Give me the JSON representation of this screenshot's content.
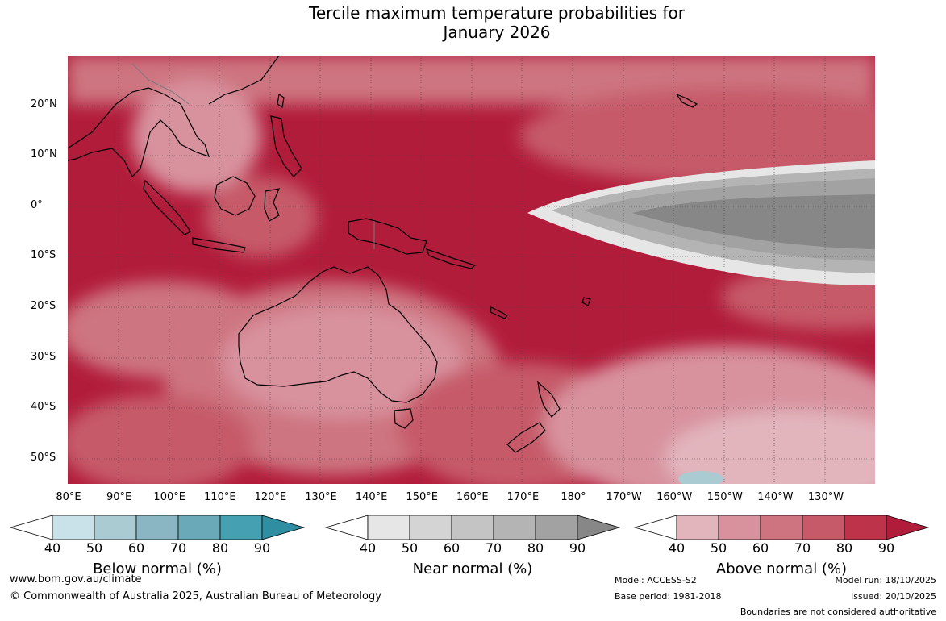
{
  "title_line1": "Tercile maximum temperature probabilities for",
  "title_line2": "January 2026",
  "lat_labels": [
    "20°N",
    "10°N",
    "0°",
    "10°S",
    "20°S",
    "30°S",
    "40°S",
    "50°S"
  ],
  "lon_labels": [
    "80°E",
    "90°E",
    "100°E",
    "110°E",
    "120°E",
    "130°E",
    "140°E",
    "150°E",
    "160°E",
    "170°E",
    "180°",
    "170°W",
    "160°W",
    "150°W",
    "140°W",
    "130°W"
  ],
  "colorbars": [
    {
      "label": "Below normal (%)",
      "ticks": [
        "40",
        "50",
        "60",
        "70",
        "80",
        "90"
      ],
      "colors": [
        "#ffffff",
        "#c9e1e8",
        "#a9cbd1",
        "#8ab6c3",
        "#6aa9b7",
        "#45a0b2",
        "#2f8ea2"
      ]
    },
    {
      "label": "Near normal (%)",
      "ticks": [
        "40",
        "50",
        "60",
        "70",
        "80",
        "90"
      ],
      "colors": [
        "#ffffff",
        "#e6e6e6",
        "#d4d4d4",
        "#c4c4c4",
        "#b4b4b4",
        "#a2a2a2",
        "#878787"
      ]
    },
    {
      "label": "Above normal (%)",
      "ticks": [
        "40",
        "50",
        "60",
        "70",
        "80",
        "90"
      ],
      "colors": [
        "#ffffff",
        "#e2b5bd",
        "#d8929e",
        "#cd7480",
        "#c65a69",
        "#bd3349",
        "#b21c3b"
      ]
    }
  ],
  "footer": {
    "website": "www.bom.gov.au/climate",
    "copyright": "© Commonwealth of Australia 2025, Australian Bureau of Meteorology",
    "model": "Model: ACCESS-S2",
    "base_period": "Base period: 1981-2018",
    "model_run": "Model run: 18/10/2025",
    "issued": "Issued: 20/10/2025",
    "disclaimer": "Boundaries are not considered authoritative"
  }
}
